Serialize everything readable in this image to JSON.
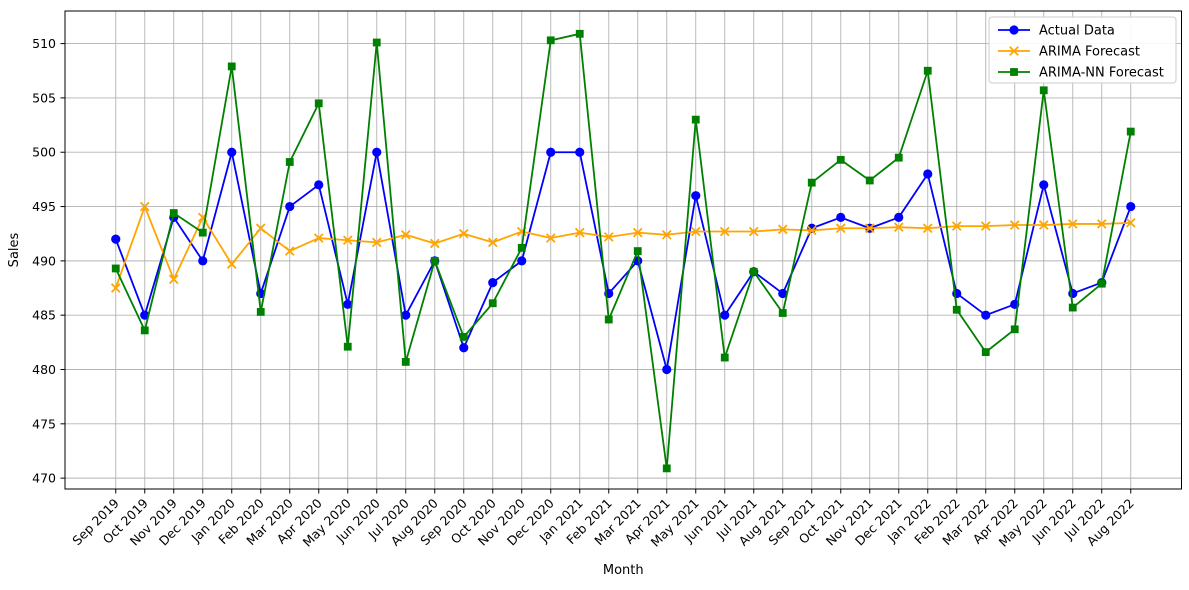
{
  "chart_data": {
    "type": "line",
    "title": "",
    "xlabel": "Month",
    "ylabel": "Sales",
    "x_categories": [
      "Sep 2019",
      "Oct 2019",
      "Nov 2019",
      "Dec 2019",
      "Jan 2020",
      "Feb 2020",
      "Mar 2020",
      "Apr 2020",
      "May 2020",
      "Jun 2020",
      "Jul 2020",
      "Aug 2020",
      "Sep 2020",
      "Oct 2020",
      "Nov 2020",
      "Dec 2020",
      "Jan 2021",
      "Feb 2021",
      "Mar 2021",
      "Apr 2021",
      "May 2021",
      "Jun 2021",
      "Jul 2021",
      "Aug 2021",
      "Sep 2021",
      "Oct 2021",
      "Nov 2021",
      "Dec 2021",
      "Jan 2022",
      "Feb 2022",
      "Mar 2022",
      "Apr 2022",
      "May 2022",
      "Jun 2022",
      "Jul 2022",
      "Aug 2022"
    ],
    "yticks": [
      470,
      475,
      480,
      485,
      490,
      495,
      500,
      505,
      510
    ],
    "ylim": [
      469,
      513
    ],
    "grid": true,
    "grid_color": "#b3b3b3",
    "legend_position": "upper right",
    "series": [
      {
        "name": "Actual Data",
        "color": "#0000ff",
        "marker": "circle",
        "values": [
          492,
          485,
          494,
          490,
          500,
          487,
          495,
          497,
          486,
          500,
          485,
          490,
          482,
          488,
          490,
          500,
          500,
          487,
          490,
          480,
          496,
          485,
          489,
          487,
          493,
          494,
          493,
          494,
          498,
          487,
          485,
          486,
          497,
          487,
          488,
          495
        ]
      },
      {
        "name": "ARIMA Forecast",
        "color": "#ffa500",
        "marker": "x",
        "values": [
          487.5,
          495.0,
          488.3,
          494.0,
          489.7,
          493.0,
          490.9,
          492.1,
          491.9,
          491.7,
          492.4,
          491.6,
          492.5,
          491.7,
          492.7,
          492.1,
          492.6,
          492.2,
          492.6,
          492.4,
          492.7,
          492.7,
          492.7,
          492.9,
          492.8,
          493.0,
          493.0,
          493.1,
          493.0,
          493.2,
          493.2,
          493.3,
          493.3,
          493.4,
          493.4,
          493.5
        ]
      },
      {
        "name": "ARIMA-NN Forecast",
        "color": "#008000",
        "marker": "square",
        "values": [
          489.3,
          483.6,
          494.4,
          492.6,
          507.9,
          485.3,
          499.1,
          504.5,
          482.1,
          510.1,
          480.7,
          490.0,
          483.0,
          486.1,
          491.2,
          510.3,
          510.9,
          484.6,
          490.9,
          470.9,
          503.0,
          481.1,
          489.0,
          485.2,
          497.2,
          499.3,
          497.4,
          499.5,
          507.5,
          485.5,
          481.6,
          483.7,
          505.7,
          485.7,
          487.9,
          501.9
        ]
      }
    ]
  }
}
